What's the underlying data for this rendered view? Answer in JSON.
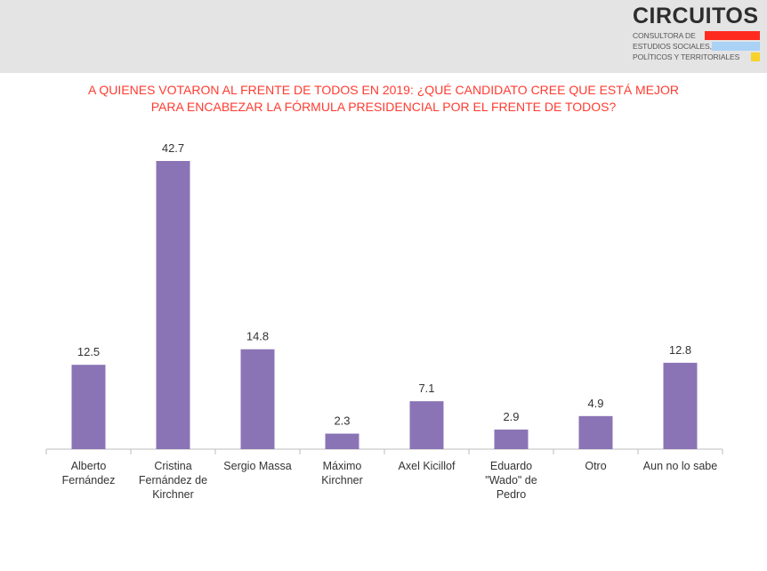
{
  "logo": {
    "name": "CIRCUITOS",
    "line1": "CONSULTORA DE",
    "line2": "ESTUDIOS SOCIALES,",
    "line3": "POLÍTICOS Y TERRITORIALES",
    "bar_colors": [
      "#ff2a1f",
      "#a9d2f5",
      "#f7d22a"
    ]
  },
  "title": {
    "line1": "A QUIENES VOTARON AL FRENTE DE TODOS EN 2019: ¿QUÉ CANDIDATO CREE QUE ESTÁ MEJOR",
    "line2": "PARA ENCABEZAR LA FÓRMULA PRESIDENCIAL POR EL FRENTE DE TODOS?"
  },
  "chart_data": {
    "type": "bar",
    "title": "A QUIENES VOTARON AL FRENTE DE TODOS EN 2019: ¿QUÉ CANDIDATO CREE QUE ESTÁ MEJOR PARA ENCABEZAR LA FÓRMULA PRESIDENCIAL POR EL FRENTE DE TODOS?",
    "categories": [
      [
        "Alberto",
        "Fernández"
      ],
      [
        "Cristina",
        "Fernández de",
        "Kirchner"
      ],
      [
        "Sergio Massa"
      ],
      [
        "Máximo",
        "Kirchner"
      ],
      [
        "Axel Kicillof"
      ],
      [
        "Eduardo",
        "\"Wado\" de",
        "Pedro"
      ],
      [
        "Otro"
      ],
      [
        "Aun no lo sabe"
      ]
    ],
    "values": [
      12.5,
      42.7,
      14.8,
      2.3,
      7.1,
      2.9,
      4.9,
      12.8
    ],
    "ylim": [
      0,
      45
    ],
    "grid": false,
    "bar_color": "#8b74b5",
    "axis_color": "#bdbdbd",
    "title_color": "#ff3b30"
  }
}
